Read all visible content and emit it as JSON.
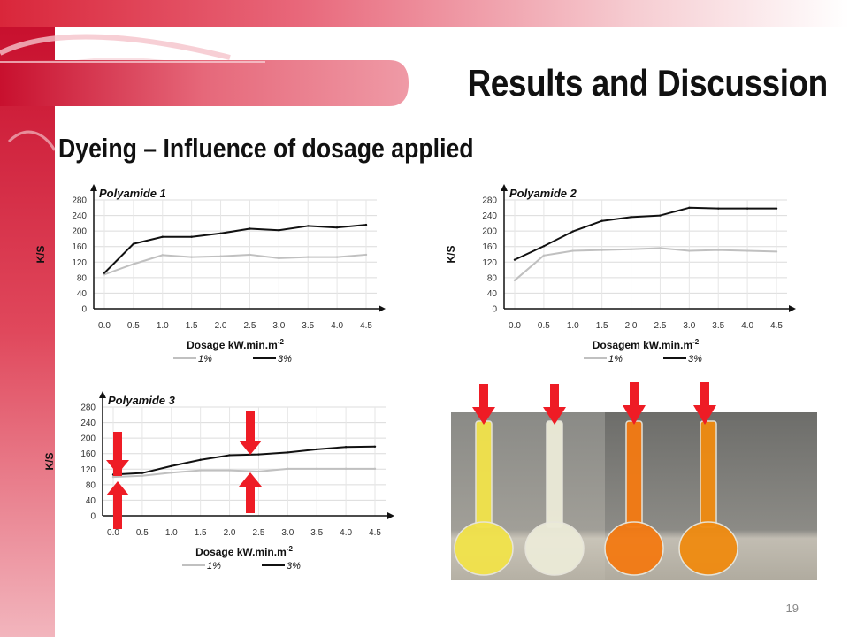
{
  "slide": {
    "title": "Results and Discussion",
    "subtitle": "Dyeing – Influence of dosage applied",
    "page_number": "19",
    "accent_color": "#d9263a"
  },
  "chart_data": [
    {
      "type": "line",
      "title": "Polyamide 1",
      "xlabel": "Dosage kW.min.m",
      "xlabel_sup": "-2",
      "ylabel": "K/S",
      "x": [
        0.0,
        0.5,
        1.0,
        1.5,
        2.0,
        2.5,
        3.0,
        3.5,
        4.0,
        4.5
      ],
      "x_tick_labels": [
        "0.0",
        "0.5",
        "1.0",
        "1.5",
        "2.0",
        "2.5",
        "3.0",
        "3.5",
        "4.0",
        "4.5"
      ],
      "y_ticks": [
        0,
        40,
        80,
        120,
        160,
        200,
        240,
        280
      ],
      "ylim": [
        0,
        280
      ],
      "grid": true,
      "legend_position": "bottom",
      "series": [
        {
          "name": "1%",
          "color": "#c0c0c0",
          "values": [
            88,
            115,
            138,
            133,
            135,
            139,
            130,
            133,
            133,
            139
          ]
        },
        {
          "name": "3%",
          "color": "#111111",
          "values": [
            92,
            167,
            185,
            185,
            194,
            206,
            202,
            213,
            209,
            216
          ]
        }
      ]
    },
    {
      "type": "line",
      "title": "Polyamide 2",
      "xlabel": "Dosagem kW.min.m",
      "xlabel_sup": "-2",
      "ylabel": "K/S",
      "x": [
        0.0,
        0.5,
        1.0,
        1.5,
        2.0,
        2.5,
        3.0,
        3.5,
        4.0,
        4.5
      ],
      "x_tick_labels": [
        "0.0",
        "0.5",
        "1.0",
        "1.5",
        "2.0",
        "2.5",
        "3.0",
        "3.5",
        "4.0",
        "4.5"
      ],
      "y_ticks": [
        0,
        40,
        80,
        120,
        160,
        200,
        240,
        280
      ],
      "ylim": [
        0,
        280
      ],
      "grid": true,
      "legend_position": "bottom",
      "series": [
        {
          "name": "1%",
          "color": "#c0c0c0",
          "values": [
            73,
            137,
            149,
            151,
            153,
            156,
            149,
            151,
            149,
            147
          ]
        },
        {
          "name": "3%",
          "color": "#111111",
          "values": [
            126,
            161,
            199,
            226,
            236,
            240,
            260,
            258,
            258,
            258
          ]
        }
      ]
    },
    {
      "type": "line",
      "title": "Polyamide 3",
      "xlabel": "Dosage kW.min.m",
      "xlabel_sup": "-2",
      "ylabel": "K/S",
      "x": [
        0.0,
        0.5,
        1.0,
        1.5,
        2.0,
        2.5,
        3.0,
        3.5,
        4.0,
        4.5
      ],
      "x_tick_labels": [
        "0.0",
        "0.5",
        "1.0",
        "1.5",
        "2.0",
        "2.5",
        "3.0",
        "3.5",
        "4.0",
        "4.5"
      ],
      "y_ticks": [
        0,
        40,
        80,
        120,
        160,
        200,
        240,
        280
      ],
      "ylim": [
        0,
        280
      ],
      "grid": true,
      "legend_position": "bottom",
      "series": [
        {
          "name": "1%",
          "color": "#c0c0c0",
          "values": [
            100,
            103,
            111,
            117,
            117,
            114,
            121,
            121,
            121,
            121
          ]
        },
        {
          "name": "3%",
          "color": "#111111",
          "values": [
            106,
            110,
            128,
            144,
            156,
            158,
            163,
            171,
            177,
            178
          ]
        }
      ]
    }
  ],
  "annotations": {
    "arrow_color": "#ee1c25"
  },
  "photo": {
    "flask_colors": [
      "#f2e34a",
      "#ecebd8",
      "#f47a12",
      "#f08b10"
    ]
  }
}
